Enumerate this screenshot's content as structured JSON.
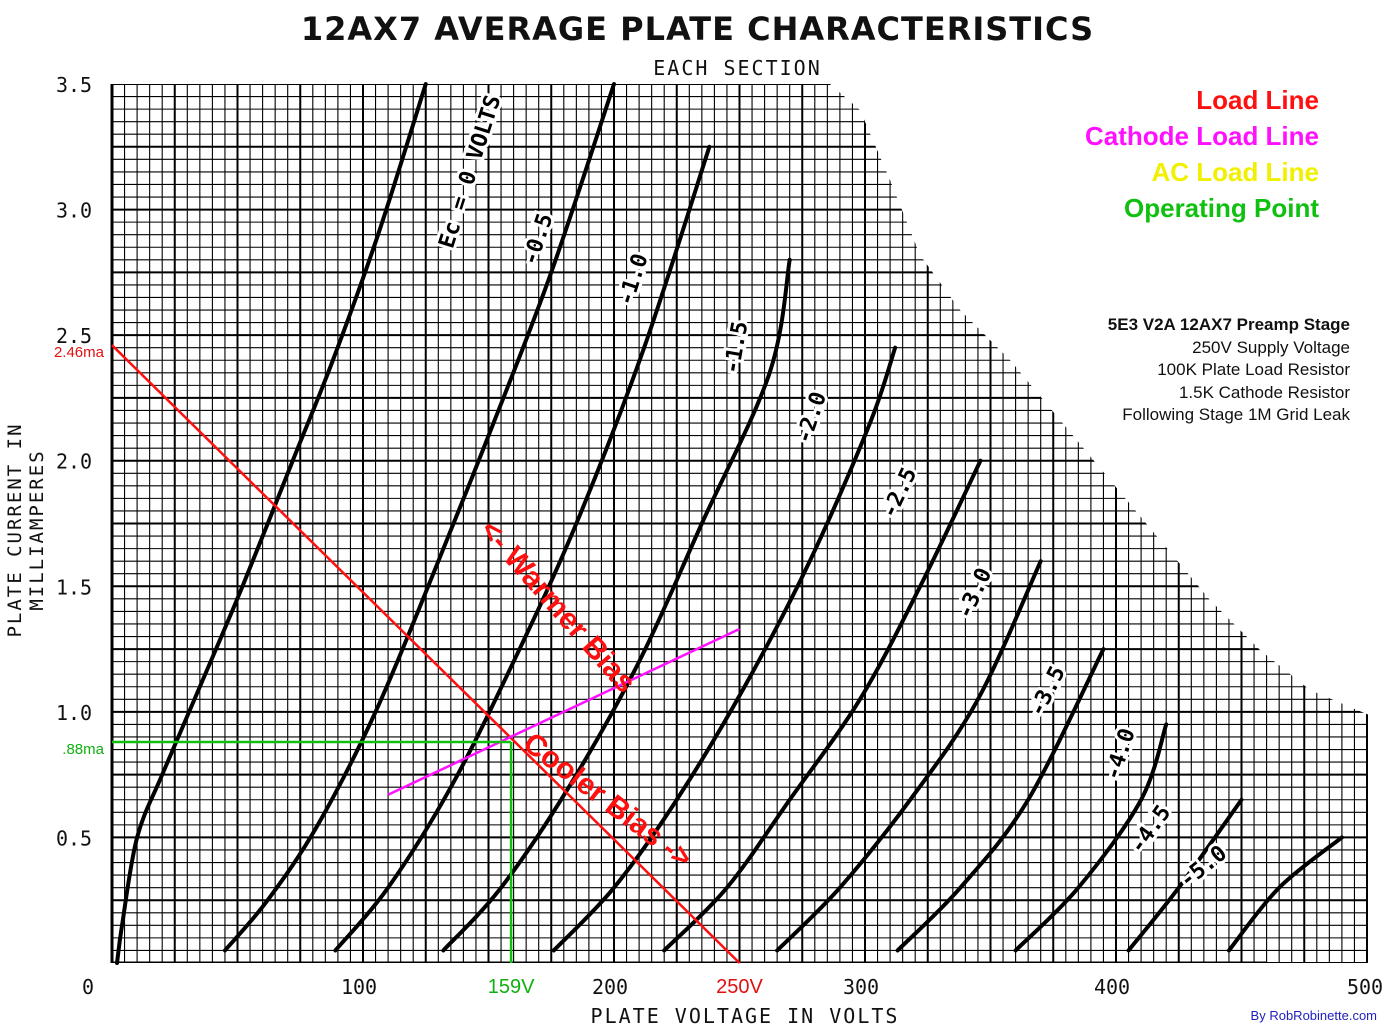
{
  "title": "12AX7 AVERAGE PLATE CHARACTERISTICS",
  "subtitle": "EACH SECTION",
  "ylabel": "PLATE CURRENT IN MILLIAMPERES",
  "xlabel": "PLATE VOLTAGE IN VOLTS",
  "legend": [
    {
      "label": "Load Line",
      "color": "#ff1010"
    },
    {
      "label": "Cathode Load Line",
      "color": "#ff10ff"
    },
    {
      "label": "AC Load Line",
      "color": "#f0f000"
    },
    {
      "label": "Operating Point",
      "color": "#10c010"
    }
  ],
  "info": {
    "heading": "5E3 V2A 12AX7 Preamp Stage",
    "lines": [
      "250V Supply Voltage",
      "100K Plate Load Resistor",
      "1.5K Cathode Resistor",
      "Following Stage 1M Grid Leak"
    ]
  },
  "credit": "By RobRobinette.com",
  "chart_data": {
    "type": "line",
    "title": "12AX7 AVERAGE PLATE CHARACTERISTICS",
    "xlabel": "PLATE VOLTAGE IN VOLTS",
    "ylabel": "PLATE CURRENT IN MILLIAMPERES",
    "xlim": [
      0,
      500
    ],
    "ylim": [
      0,
      3.5
    ],
    "x_ticks": [
      {
        "v": 0,
        "label": "0"
      },
      {
        "v": 100,
        "label": "100"
      },
      {
        "v": 200,
        "label": "200"
      },
      {
        "v": 300,
        "label": "300"
      },
      {
        "v": 400,
        "label": "400"
      },
      {
        "v": 500,
        "label": "500"
      }
    ],
    "y_ticks": [
      {
        "v": 0.5,
        "label": "0.5"
      },
      {
        "v": 1.0,
        "label": "1.0"
      },
      {
        "v": 1.5,
        "label": "1.5"
      },
      {
        "v": 2.0,
        "label": "2.0"
      },
      {
        "v": 2.5,
        "label": "2.5"
      },
      {
        "v": 3.0,
        "label": "3.0"
      },
      {
        "v": 3.5,
        "label": "3.5"
      }
    ],
    "grid": true,
    "series": [
      {
        "name": "0",
        "label": "Ec = 0 VOLTS",
        "label_at": [
          143,
          3.15
        ],
        "points": [
          [
            2,
            0
          ],
          [
            4,
            0.15
          ],
          [
            10,
            0.5
          ],
          [
            20,
            0.75
          ],
          [
            35,
            1.1
          ],
          [
            52,
            1.5
          ],
          [
            72,
            2.0
          ],
          [
            88,
            2.4
          ],
          [
            106,
            2.9
          ],
          [
            125,
            3.5
          ]
        ]
      },
      {
        "name": "-0.5",
        "label": "-0.5",
        "label_at": [
          170,
          2.88
        ],
        "points": [
          [
            45,
            0.05
          ],
          [
            62,
            0.25
          ],
          [
            82,
            0.55
          ],
          [
            105,
            1.0
          ],
          [
            128,
            1.55
          ],
          [
            152,
            2.15
          ],
          [
            175,
            2.75
          ],
          [
            200,
            3.5
          ]
        ]
      },
      {
        "name": "-1.0",
        "label": "-1.0",
        "label_at": [
          208,
          2.72
        ],
        "points": [
          [
            89,
            0.05
          ],
          [
            110,
            0.3
          ],
          [
            135,
            0.7
          ],
          [
            160,
            1.2
          ],
          [
            185,
            1.75
          ],
          [
            212,
            2.45
          ],
          [
            238,
            3.25
          ]
        ]
      },
      {
        "name": "-1.5",
        "label": "-1.5",
        "label_at": [
          249,
          2.45
        ],
        "points": [
          [
            132,
            0.05
          ],
          [
            155,
            0.3
          ],
          [
            182,
            0.7
          ],
          [
            210,
            1.2
          ],
          [
            235,
            1.75
          ],
          [
            262,
            2.35
          ],
          [
            270,
            2.8
          ]
        ]
      },
      {
        "name": "-2.0",
        "label": "-2.0",
        "label_at": [
          279,
          2.17
        ],
        "points": [
          [
            176,
            0.05
          ],
          [
            200,
            0.3
          ],
          [
            225,
            0.65
          ],
          [
            252,
            1.1
          ],
          [
            278,
            1.6
          ],
          [
            302,
            2.15
          ],
          [
            312,
            2.45
          ]
        ]
      },
      {
        "name": "-2.5",
        "label": "-2.5",
        "label_at": [
          314,
          1.87
        ],
        "points": [
          [
            220,
            0.05
          ],
          [
            245,
            0.3
          ],
          [
            270,
            0.65
          ],
          [
            298,
            1.05
          ],
          [
            322,
            1.5
          ],
          [
            346,
            2.0
          ]
        ]
      },
      {
        "name": "-3.0",
        "label": "-3.0",
        "label_at": [
          344,
          1.47
        ],
        "points": [
          [
            265,
            0.05
          ],
          [
            290,
            0.3
          ],
          [
            318,
            0.65
          ],
          [
            345,
            1.05
          ],
          [
            370,
            1.6
          ]
        ]
      },
      {
        "name": "-3.5",
        "label": "-3.5",
        "label_at": [
          373,
          1.08
        ],
        "points": [
          [
            313,
            0.05
          ],
          [
            338,
            0.3
          ],
          [
            365,
            0.65
          ],
          [
            395,
            1.25
          ]
        ]
      },
      {
        "name": "-4.0",
        "label": "-4.0",
        "label_at": [
          402,
          0.83
        ],
        "points": [
          [
            360,
            0.05
          ],
          [
            385,
            0.3
          ],
          [
            410,
            0.65
          ],
          [
            420,
            0.95
          ]
        ]
      },
      {
        "name": "-4.5",
        "label": "-4.5",
        "label_at": [
          414,
          0.53
        ],
        "points": [
          [
            405,
            0.05
          ],
          [
            425,
            0.3
          ],
          [
            450,
            0.65
          ]
        ]
      },
      {
        "name": "-5.0",
        "label": "-5.0",
        "label_at": [
          435,
          0.38
        ],
        "points": [
          [
            445,
            0.05
          ],
          [
            465,
            0.3
          ],
          [
            490,
            0.5
          ]
        ]
      }
    ],
    "overlays": {
      "load_line": {
        "color": "#ff1010",
        "points": [
          [
            0,
            2.46
          ],
          [
            250,
            0
          ]
        ]
      },
      "cathode_load_line": {
        "color": "#ff10ff",
        "points": [
          [
            110,
            0.67
          ],
          [
            250,
            1.33
          ]
        ]
      },
      "operating_point": {
        "color": "#10c010",
        "v": 159,
        "i": 0.88
      },
      "axis_annotations": [
        {
          "axis": "y",
          "v": 2.46,
          "label": "2.46ma",
          "color": "#e01010"
        },
        {
          "axis": "y",
          "v": 0.88,
          "label": ".88ma",
          "color": "#10b010"
        },
        {
          "axis": "x",
          "v": 159,
          "label": "159V",
          "color": "#10b010"
        },
        {
          "axis": "x",
          "v": 250,
          "label": "250V",
          "color": "#e01010"
        }
      ],
      "text_annotations": [
        {
          "label": "<- Warmer Bias",
          "at": [
            146,
            1.72
          ],
          "slope_to": [
            206,
            1.04
          ],
          "color": "#ff1010"
        },
        {
          "label": "Cooler Bias ->",
          "at": [
            163,
            0.86
          ],
          "slope_to": [
            250,
            0.2
          ],
          "color": "#ff1010"
        }
      ]
    }
  }
}
